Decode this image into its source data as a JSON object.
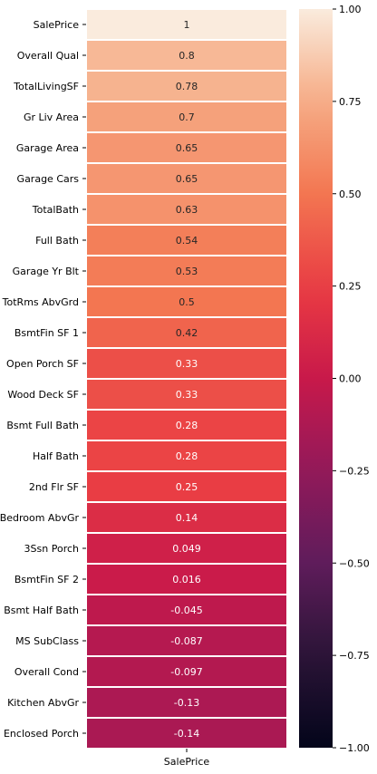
{
  "chart_data": {
    "type": "heatmap",
    "x_categories": [
      "SalePrice"
    ],
    "y_categories": [
      "SalePrice",
      "Overall Qual",
      "TotalLivingSF",
      "Gr Liv Area",
      "Garage Area",
      "Garage Cars",
      "TotalBath",
      "Full Bath",
      "Garage Yr Blt",
      "TotRms AbvGrd",
      "BsmtFin SF 1",
      "Open Porch SF",
      "Wood Deck SF",
      "Bsmt Full Bath",
      "Half Bath",
      "2nd Flr SF",
      "Bedroom AbvGr",
      "3Ssn Porch",
      "BsmtFin SF 2",
      "Bsmt Half Bath",
      "MS SubClass",
      "Overall Cond",
      "Kitchen AbvGr",
      "Enclosed Porch"
    ],
    "values": [
      1,
      0.8,
      0.78,
      0.7,
      0.65,
      0.65,
      0.63,
      0.54,
      0.53,
      0.5,
      0.42,
      0.33,
      0.33,
      0.28,
      0.28,
      0.25,
      0.14,
      0.049,
      0.016,
      -0.045,
      -0.087,
      -0.097,
      -0.13,
      -0.14
    ],
    "annotations": [
      "1",
      "0.8",
      "0.78",
      "0.7",
      "0.65",
      "0.65",
      "0.63",
      "0.54",
      "0.53",
      "0.5",
      "0.42",
      "0.33",
      "0.33",
      "0.28",
      "0.28",
      "0.25",
      "0.14",
      "0.049",
      "0.016",
      "-0.045",
      "-0.087",
      "-0.097",
      "-0.13",
      "-0.14"
    ],
    "colorbar": {
      "min": -1.0,
      "max": 1.0,
      "ticks": [
        1.0,
        0.75,
        0.5,
        0.25,
        0.0,
        -0.25,
        -0.5,
        -0.75,
        -1.0
      ],
      "tick_labels": [
        "1.00",
        "0.75",
        "0.50",
        "0.25",
        "0.00",
        "−0.25",
        "−0.50",
        "−0.75",
        "−1.00"
      ],
      "colormap": "rocket"
    }
  }
}
